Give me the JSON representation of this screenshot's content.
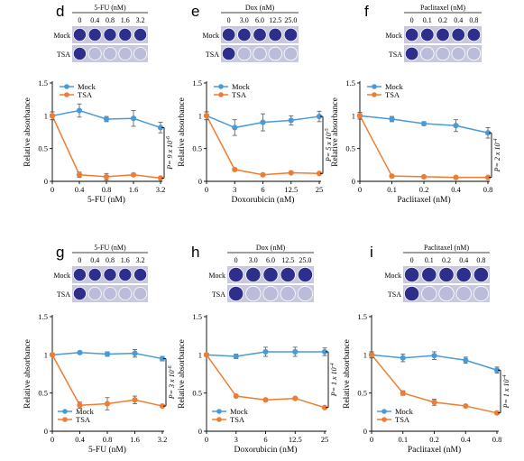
{
  "colors": {
    "mock": "#4a9ad8",
    "tsa": "#ee7d31",
    "well_fill": "#2e2f8c",
    "plate_bg": "#c9c9de"
  },
  "row_labels": {
    "mock": "Mock",
    "tsa": "TSA"
  },
  "panels": [
    {
      "letter": "d",
      "drug": "5-FU (nM)",
      "concentrations": [
        "0",
        "0.4",
        "0.8",
        "1.6",
        "3.2"
      ],
      "pvalue": "P= 9 x 10",
      "pvalue_exp": "-6",
      "chart_data": {
        "type": "line",
        "categories": [
          "0",
          "0.4",
          "0.8",
          "1.6",
          "3.2"
        ],
        "xlabel": "5-FU (nM)",
        "ylabel": "Relative absorbance",
        "ylim": [
          0,
          1.5
        ],
        "yticks": [
          "0",
          "0.5",
          "1",
          "1.5"
        ],
        "legend": "top-left",
        "series": [
          {
            "name": "Mock",
            "values": [
              1.0,
              1.08,
              0.95,
              0.96,
              0.82
            ],
            "errors": [
              0.06,
              0.1,
              0.04,
              0.12,
              0.08
            ]
          },
          {
            "name": "TSA",
            "values": [
              1.0,
              0.1,
              0.07,
              0.1,
              0.05
            ],
            "errors": [
              0.06,
              0.04,
              0.05,
              0.02,
              0.02
            ]
          }
        ]
      }
    },
    {
      "letter": "e",
      "drug": "Dox (nM)",
      "concentrations": [
        "0",
        "3.0",
        "6.0",
        "12.5",
        "25.0"
      ],
      "pvalue": "P= 5 x 10",
      "pvalue_exp": "-5",
      "chart_data": {
        "type": "line",
        "categories": [
          "0",
          "3",
          "6",
          "12.5",
          "25"
        ],
        "xlabel": "Doxorubicin (nM)",
        "ylabel": "Relative absorbance",
        "ylim": [
          0,
          1.5
        ],
        "yticks": [
          "0",
          "0.5",
          "1",
          "1.5"
        ],
        "legend": "top-left",
        "series": [
          {
            "name": "Mock",
            "values": [
              1.0,
              0.82,
              0.9,
              0.93,
              0.99
            ],
            "errors": [
              0.06,
              0.12,
              0.13,
              0.07,
              0.08
            ]
          },
          {
            "name": "TSA",
            "values": [
              1.0,
              0.18,
              0.1,
              0.13,
              0.12
            ],
            "errors": [
              0.06,
              0.02,
              0.01,
              0.01,
              0.01
            ]
          }
        ]
      }
    },
    {
      "letter": "f",
      "drug": "Paclitaxel (nM)",
      "concentrations": [
        "0",
        "0.1",
        "0.2",
        "0.4",
        "0.8"
      ],
      "pvalue": "P= 2 x 10",
      "pvalue_exp": "-4",
      "chart_data": {
        "type": "line",
        "categories": [
          "0",
          "0.1",
          "0.2",
          "0.4",
          "0.8"
        ],
        "xlabel": "Paclitaxel (nM)",
        "ylabel": "Relative absorbance",
        "ylim": [
          0,
          1.5
        ],
        "yticks": [
          "0",
          "0.5",
          "1",
          "1.5"
        ],
        "legend": "top-left",
        "series": [
          {
            "name": "Mock",
            "values": [
              1.0,
              0.95,
              0.88,
              0.85,
              0.74
            ],
            "errors": [
              0.05,
              0.04,
              0.03,
              0.09,
              0.08
            ]
          },
          {
            "name": "TSA",
            "values": [
              1.0,
              0.08,
              0.07,
              0.06,
              0.06
            ],
            "errors": [
              0.05,
              0.01,
              0.01,
              0.01,
              0.01
            ]
          }
        ]
      }
    },
    {
      "letter": "g",
      "drug": "5-FU (nM)",
      "concentrations": [
        "0",
        "0.4",
        "0.8",
        "1.6",
        "3.2"
      ],
      "pvalue": "P= 3 x 10",
      "pvalue_exp": "-6",
      "chart_data": {
        "type": "line",
        "categories": [
          "0",
          "0.4",
          "0.8",
          "1.6",
          "3.2"
        ],
        "xlabel": "5-FU (nM)",
        "ylabel": "Relative absorbance",
        "ylim": [
          0,
          1.5
        ],
        "yticks": [
          "0",
          "0.5",
          "1",
          "1.5"
        ],
        "legend": "bottom-left",
        "series": [
          {
            "name": "Mock",
            "values": [
              1.0,
              1.03,
              1.01,
              1.02,
              0.95
            ],
            "errors": [
              0.02,
              0.02,
              0.03,
              0.05,
              0.03
            ]
          },
          {
            "name": "TSA",
            "values": [
              1.0,
              0.34,
              0.36,
              0.41,
              0.33
            ],
            "errors": [
              0.02,
              0.04,
              0.08,
              0.05,
              0.02
            ]
          }
        ]
      }
    },
    {
      "letter": "h",
      "drug": "Dox (nM)",
      "concentrations": [
        "0",
        "3.0",
        "6.0",
        "12.5",
        "25.0"
      ],
      "pvalue": "P= 1 x 10",
      "pvalue_exp": "-4",
      "chart_data": {
        "type": "line",
        "categories": [
          "0",
          "3",
          "6",
          "12.5",
          "25"
        ],
        "xlabel": "Doxorubicin (nM)",
        "ylabel": "Relative absorbance",
        "ylim": [
          0,
          1.5
        ],
        "yticks": [
          "0",
          "0.5",
          "1",
          "1.5"
        ],
        "legend": "bottom-left",
        "series": [
          {
            "name": "Mock",
            "values": [
              1.0,
              0.98,
              1.04,
              1.04,
              1.04
            ],
            "errors": [
              0.02,
              0.03,
              0.06,
              0.06,
              0.05
            ]
          },
          {
            "name": "TSA",
            "values": [
              1.0,
              0.46,
              0.41,
              0.43,
              0.31
            ],
            "errors": [
              0.02,
              0.01,
              0.01,
              0.01,
              0.01
            ]
          }
        ]
      }
    },
    {
      "letter": "i",
      "drug": "Paclitaxel (nM)",
      "concentrations": [
        "0",
        "0.1",
        "0.2",
        "0.4",
        "0.8"
      ],
      "pvalue": "P= 1 x 10",
      "pvalue_exp": "-4",
      "chart_data": {
        "type": "line",
        "categories": [
          "0",
          "0.1",
          "0.2",
          "0.4",
          "0.8"
        ],
        "xlabel": "Paclitaxel (nM)",
        "ylabel": "Relative absorbance",
        "ylim": [
          0,
          1.5
        ],
        "yticks": [
          "0",
          "0.5",
          "1",
          "1.5"
        ],
        "legend": "bottom-left",
        "series": [
          {
            "name": "Mock",
            "values": [
              1.0,
              0.96,
              0.99,
              0.93,
              0.8
            ],
            "errors": [
              0.04,
              0.05,
              0.05,
              0.04,
              0.04
            ]
          },
          {
            "name": "TSA",
            "values": [
              1.0,
              0.5,
              0.38,
              0.33,
              0.24
            ],
            "errors": [
              0.04,
              0.03,
              0.04,
              0.01,
              0.02
            ]
          }
        ]
      }
    }
  ]
}
